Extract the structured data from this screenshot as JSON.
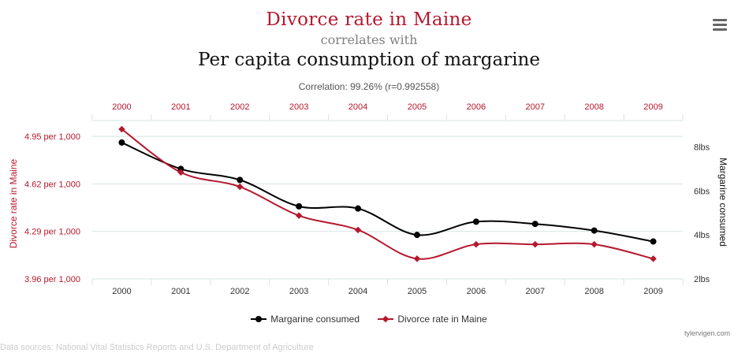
{
  "header": {
    "title_primary": "Divorce rate in Maine",
    "connector": "correlates with",
    "title_secondary": "Per capita consumption of margarine",
    "correlation": "Correlation: 99.26% (r=0.992558)"
  },
  "menu": {
    "icon": "hamburger-menu-icon"
  },
  "legend": {
    "margarine_label": "Margarine consumed",
    "divorce_label": "Divorce rate in Maine"
  },
  "footer": {
    "credit": "tylervigen.com",
    "sources": "Data sources: National Vital Statistics Reports and U.S. Department of Agriculture"
  },
  "chart_data": {
    "type": "line",
    "categories": [
      "2000",
      "2001",
      "2002",
      "2003",
      "2004",
      "2005",
      "2006",
      "2007",
      "2008",
      "2009"
    ],
    "series": [
      {
        "name": "Margarine consumed",
        "axis": "right",
        "marker": "circle",
        "color": "#000000",
        "values": [
          8.2,
          7.0,
          6.5,
          5.3,
          5.2,
          4.0,
          4.6,
          4.5,
          4.2,
          3.7
        ]
      },
      {
        "name": "Divorce rate in Maine",
        "axis": "left",
        "marker": "diamond",
        "color": "#b5182d",
        "values": [
          5.0,
          4.7,
          4.6,
          4.4,
          4.3,
          4.1,
          4.2,
          4.2,
          4.2,
          4.1
        ]
      }
    ],
    "left_axis": {
      "label": "Divorce rate in Maine",
      "color": "#b5182d",
      "ticks": [
        3.96,
        4.29,
        4.62,
        4.95
      ],
      "tick_labels": [
        "3.96 per 1,000",
        "4.29 per 1,000",
        "4.62 per 1,000",
        "4.95 per 1,000"
      ],
      "range": [
        3.96,
        5.06
      ]
    },
    "right_axis": {
      "label": "Margarine consumed",
      "color": "#333333",
      "ticks": [
        2,
        4,
        6,
        8
      ],
      "tick_labels": [
        "2lbs",
        "4lbs",
        "6lbs",
        "8lbs"
      ],
      "range": [
        2,
        9.2
      ]
    },
    "top_axis_color": "#b5182d",
    "grid_color": "#d8e3e3",
    "grid": true,
    "legend_position": "bottom-center"
  }
}
